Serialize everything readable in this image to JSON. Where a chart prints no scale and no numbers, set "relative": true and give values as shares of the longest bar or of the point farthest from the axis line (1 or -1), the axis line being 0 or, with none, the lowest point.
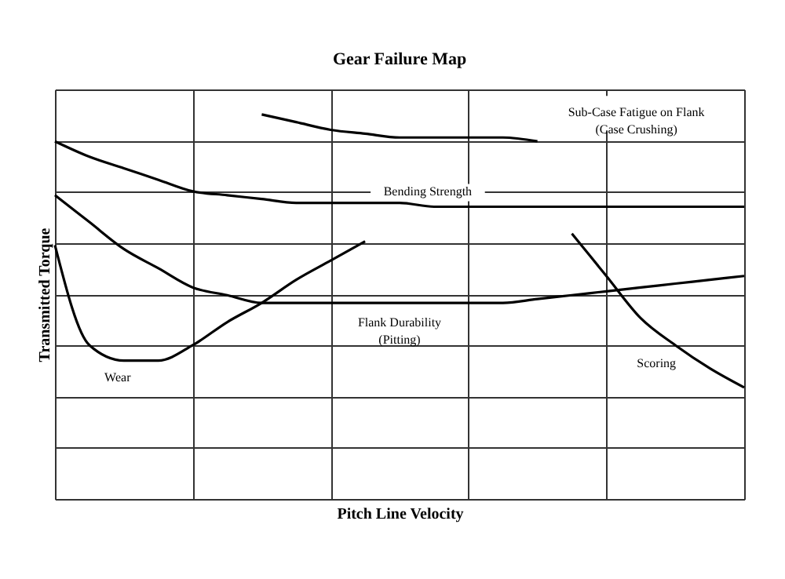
{
  "chart_data": {
    "type": "line",
    "title": "Gear Failure Map",
    "xlabel": "Pitch Line Velocity",
    "ylabel": "Transmitted Torque",
    "relative": true,
    "grid": true,
    "legend": false,
    "categories": [
      null,
      null,
      null,
      null,
      null,
      null,
      null,
      null,
      null,
      null,
      null,
      null,
      null,
      null,
      null,
      null,
      null,
      null,
      null,
      null,
      null
    ],
    "series": [
      {
        "name": "Sub-Case Fatigue on Flank\n(Case Crushing)",
        "color": "#000000",
        "values": [
          null,
          null,
          null,
          null,
          null,
          null,
          1,
          0.98,
          0.96,
          0.95,
          0.94,
          0.94,
          0.94,
          0.94,
          0.93,
          null,
          null,
          null,
          null,
          null,
          null
        ]
      },
      {
        "name": "Bending Strength",
        "color": "#000000",
        "values": [
          0.93,
          0.89,
          0.86,
          0.83,
          0.8,
          0.79,
          0.78,
          0.77,
          0.77,
          0.77,
          0.77,
          0.76,
          0.76,
          0.76,
          0.76,
          0.76,
          0.76,
          0.76,
          0.76,
          0.76,
          0.76
        ]
      },
      {
        "name": "Flank Durability\n(Pitting)",
        "color": "#000000",
        "values": [
          0.79,
          0.72,
          0.65,
          0.6,
          0.55,
          0.53,
          0.51,
          0.51,
          0.51,
          0.51,
          0.51,
          0.51,
          0.51,
          0.51,
          0.52,
          0.53,
          0.54,
          0.55,
          0.56,
          0.57,
          0.58
        ]
      },
      {
        "name": "Wear",
        "color": "#000000",
        "values": [
          0.66,
          0.4,
          0.36,
          0.36,
          0.4,
          0.46,
          0.51,
          0.57,
          0.62,
          0.67,
          null,
          null,
          null,
          null,
          null,
          null,
          null,
          null,
          null,
          null,
          null
        ]
      },
      {
        "name": "Scoring",
        "color": "#000000",
        "values": [
          null,
          null,
          null,
          null,
          null,
          null,
          null,
          null,
          null,
          null,
          null,
          null,
          null,
          null,
          null,
          0.69,
          0.58,
          0.47,
          0.4,
          0.34,
          0.29
        ]
      }
    ]
  }
}
